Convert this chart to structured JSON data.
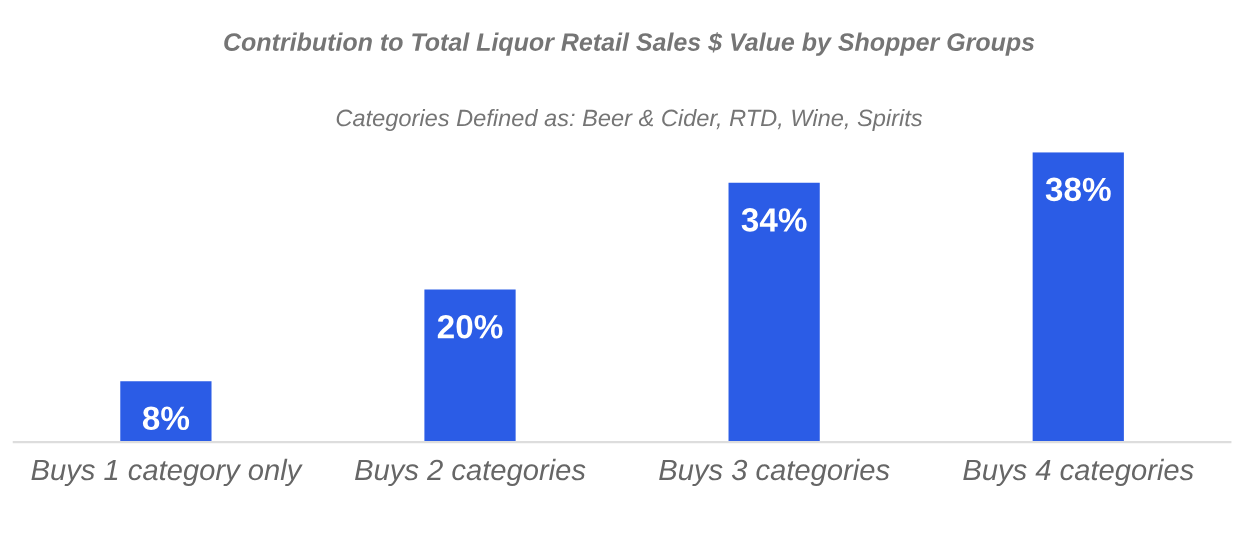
{
  "chart_data": {
    "type": "bar",
    "title": "Contribution to Total Liquor Retail Sales $ Value by Shopper Groups",
    "subtitle": "Categories Defined as: Beer & Cider, RTD, Wine, Spirits",
    "categories": [
      "Buys 1 category only",
      "Buys 2 categories",
      "Buys 3 categories",
      "Buys 4 categories"
    ],
    "values": [
      8,
      20,
      34,
      38
    ],
    "value_labels": [
      "8%",
      "20%",
      "34%",
      "38%"
    ],
    "color": "#2b5ce6",
    "grid": false,
    "legend": false
  }
}
